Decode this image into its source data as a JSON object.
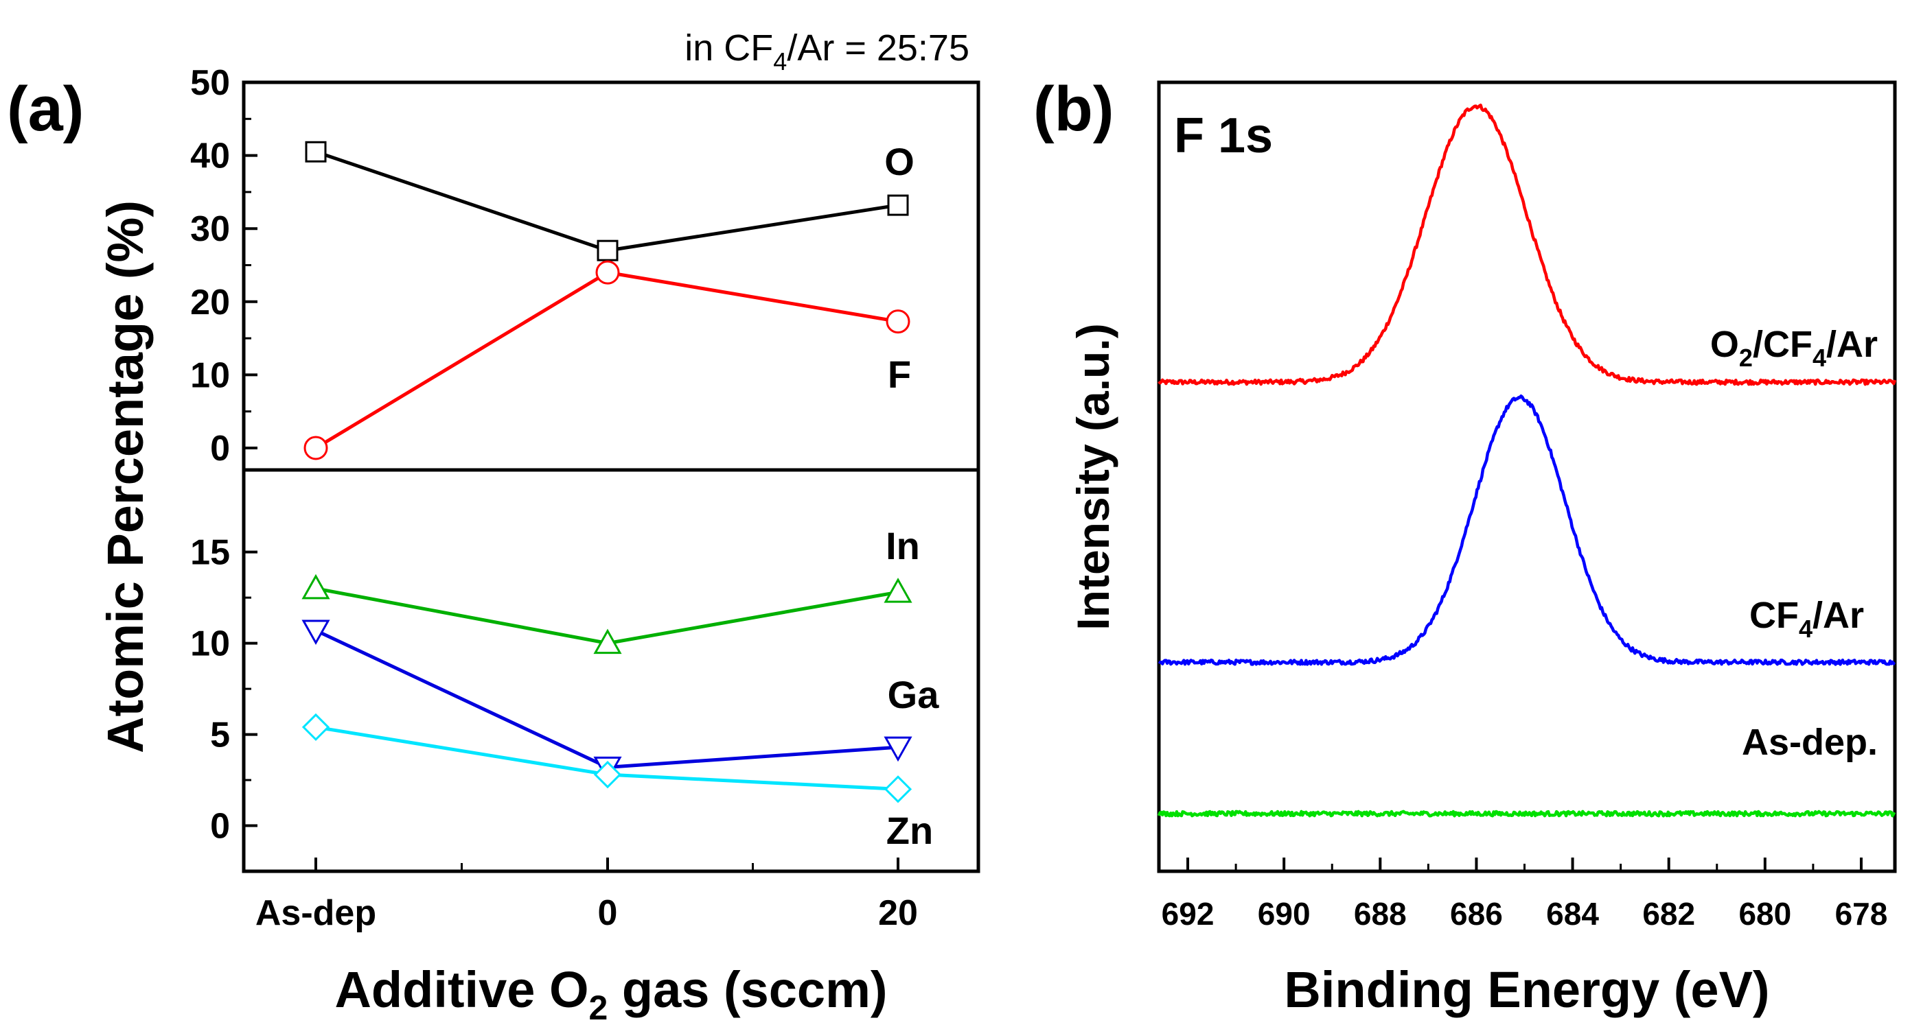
{
  "chart_data": [
    {
      "panel_label": "(a)",
      "type": "line",
      "annotation": {
        "text_pre": "in CF",
        "text_sub": "4",
        "text_post": "/Ar = 25:75"
      },
      "ylabel": "Atomic Percentage (%)",
      "xlabel": {
        "pre": "Additive O",
        "sub": "2",
        "post": " gas (sccm)"
      },
      "categories": [
        "As-dep",
        "0",
        "20"
      ],
      "upper": {
        "ylim": [
          -3,
          50
        ],
        "yticks": [
          0,
          10,
          20,
          30,
          40,
          50
        ],
        "yticklabels": [
          "0",
          "10",
          "20",
          "30",
          "40",
          "50"
        ],
        "series": [
          {
            "name": "O",
            "color": "#000000",
            "marker": "square",
            "values": [
              40.5,
              27,
              33.2
            ]
          },
          {
            "name": "F",
            "color": "#ff0000",
            "marker": "circle",
            "values": [
              0,
              24,
              17.3
            ]
          }
        ]
      },
      "lower": {
        "ylim": [
          -2.5,
          19.5
        ],
        "yticks": [
          0,
          5,
          10,
          15
        ],
        "yticklabels": [
          "0",
          "5",
          "10",
          "15"
        ],
        "series": [
          {
            "name": "In",
            "color": "#00b000",
            "marker": "triangle-up",
            "values": [
              13,
              10,
              12.8
            ]
          },
          {
            "name": "Ga",
            "color": "#0000dd",
            "marker": "triangle-down",
            "values": [
              10.7,
              3.2,
              4.3
            ]
          },
          {
            "name": "Zn",
            "color": "#00e5ff",
            "marker": "diamond",
            "values": [
              5.4,
              2.8,
              2
            ]
          }
        ]
      }
    },
    {
      "panel_label": "(b)",
      "type": "line",
      "title": "F 1s",
      "xlabel": "Binding Energy (eV)",
      "ylabel": "Intensity (a.u.)",
      "xlim": [
        692.6,
        677.3
      ],
      "ylim": [
        0,
        100
      ],
      "xticks": [
        692,
        690,
        688,
        686,
        684,
        682,
        680,
        678
      ],
      "xticklabels": [
        "692",
        "690",
        "688",
        "686",
        "684",
        "682",
        "680",
        "678"
      ],
      "series": [
        {
          "name": "O2/CF4/Ar",
          "label_parts": [
            "O",
            "2",
            "/CF",
            "4",
            "/Ar"
          ],
          "color": "#ff0000",
          "baseline": 62,
          "peak_center": 686,
          "peak_height": 35,
          "peak_width": 1.05
        },
        {
          "name": "CF4/Ar",
          "label_parts": [
            "",
            "",
            "CF",
            "4",
            "/Ar"
          ],
          "color": "#0000ff",
          "baseline": 26.5,
          "peak_center": 685.1,
          "peak_height": 33.5,
          "peak_width": 0.95
        },
        {
          "name": "As-dep.",
          "label_parts": [
            "",
            "",
            "As-dep.",
            "",
            ""
          ],
          "color": "#00e000",
          "baseline": 7.3,
          "peak_center": 685,
          "peak_height": 0,
          "peak_width": 1
        }
      ]
    }
  ]
}
